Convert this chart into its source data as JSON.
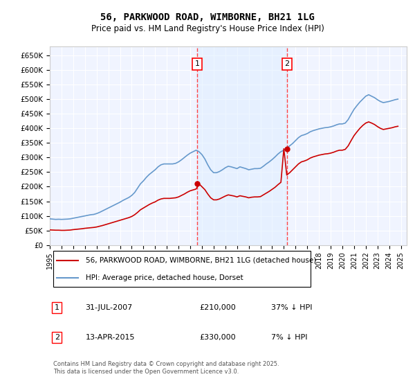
{
  "title": "56, PARKWOOD ROAD, WIMBORNE, BH21 1LG",
  "subtitle": "Price paid vs. HM Land Registry's House Price Index (HPI)",
  "xlabel": "",
  "ylabel": "",
  "ylim": [
    0,
    680000
  ],
  "yticks": [
    0,
    50000,
    100000,
    150000,
    200000,
    250000,
    300000,
    350000,
    400000,
    450000,
    500000,
    550000,
    600000,
    650000
  ],
  "ytick_labels": [
    "£0",
    "£50K",
    "£100K",
    "£150K",
    "£200K",
    "£250K",
    "£300K",
    "£350K",
    "£400K",
    "£450K",
    "£500K",
    "£550K",
    "£600K",
    "£650K"
  ],
  "xlim_start": 1995.0,
  "xlim_end": 2025.5,
  "background_color": "#ffffff",
  "plot_bg_color": "#f0f4ff",
  "grid_color": "#ffffff",
  "line1_color": "#cc0000",
  "line2_color": "#6699cc",
  "sale1_x": 2007.58,
  "sale1_y": 210000,
  "sale2_x": 2015.28,
  "sale2_y": 330000,
  "annotation1_label": "1",
  "annotation2_label": "2",
  "vline_color": "#ff4444",
  "vline_style": "--",
  "legend_line1": "56, PARKWOOD ROAD, WIMBORNE, BH21 1LG (detached house)",
  "legend_line2": "HPI: Average price, detached house, Dorset",
  "table_row1": [
    "1",
    "31-JUL-2007",
    "£210,000",
    "37% ↓ HPI"
  ],
  "table_row2": [
    "2",
    "13-APR-2015",
    "£330,000",
    "7% ↓ HPI"
  ],
  "footnote": "Contains HM Land Registry data © Crown copyright and database right 2025.\nThis data is licensed under the Open Government Licence v3.0.",
  "hpi_years": [
    1995.0,
    1995.25,
    1995.5,
    1995.75,
    1996.0,
    1996.25,
    1996.5,
    1996.75,
    1997.0,
    1997.25,
    1997.5,
    1997.75,
    1998.0,
    1998.25,
    1998.5,
    1998.75,
    1999.0,
    1999.25,
    1999.5,
    1999.75,
    2000.0,
    2000.25,
    2000.5,
    2000.75,
    2001.0,
    2001.25,
    2001.5,
    2001.75,
    2002.0,
    2002.25,
    2002.5,
    2002.75,
    2003.0,
    2003.25,
    2003.5,
    2003.75,
    2004.0,
    2004.25,
    2004.5,
    2004.75,
    2005.0,
    2005.25,
    2005.5,
    2005.75,
    2006.0,
    2006.25,
    2006.5,
    2006.75,
    2007.0,
    2007.25,
    2007.5,
    2007.75,
    2008.0,
    2008.25,
    2008.5,
    2008.75,
    2009.0,
    2009.25,
    2009.5,
    2009.75,
    2010.0,
    2010.25,
    2010.5,
    2010.75,
    2011.0,
    2011.25,
    2011.5,
    2011.75,
    2012.0,
    2012.25,
    2012.5,
    2012.75,
    2013.0,
    2013.25,
    2013.5,
    2013.75,
    2014.0,
    2014.25,
    2014.5,
    2014.75,
    2015.0,
    2015.25,
    2015.5,
    2015.75,
    2016.0,
    2016.25,
    2016.5,
    2016.75,
    2017.0,
    2017.25,
    2017.5,
    2017.75,
    2018.0,
    2018.25,
    2018.5,
    2018.75,
    2019.0,
    2019.25,
    2019.5,
    2019.75,
    2020.0,
    2020.25,
    2020.5,
    2020.75,
    2021.0,
    2021.25,
    2021.5,
    2021.75,
    2022.0,
    2022.25,
    2022.5,
    2022.75,
    2023.0,
    2023.25,
    2023.5,
    2023.75,
    2024.0,
    2024.25,
    2024.5,
    2024.75
  ],
  "hpi_values": [
    90000,
    89000,
    88000,
    88500,
    88000,
    88500,
    89000,
    90000,
    92000,
    94000,
    96000,
    98000,
    100000,
    102000,
    104000,
    105000,
    108000,
    112000,
    117000,
    122000,
    127000,
    132000,
    137000,
    142000,
    147000,
    153000,
    158000,
    163000,
    170000,
    180000,
    195000,
    210000,
    220000,
    232000,
    242000,
    250000,
    258000,
    268000,
    275000,
    278000,
    278000,
    278000,
    278000,
    280000,
    285000,
    292000,
    300000,
    308000,
    315000,
    320000,
    325000,
    320000,
    310000,
    295000,
    275000,
    258000,
    248000,
    248000,
    252000,
    258000,
    265000,
    270000,
    268000,
    265000,
    262000,
    268000,
    265000,
    262000,
    258000,
    260000,
    262000,
    262000,
    263000,
    270000,
    278000,
    285000,
    293000,
    302000,
    312000,
    320000,
    325000,
    332000,
    340000,
    348000,
    358000,
    368000,
    375000,
    378000,
    382000,
    388000,
    392000,
    395000,
    398000,
    400000,
    402000,
    403000,
    405000,
    408000,
    412000,
    415000,
    415000,
    418000,
    430000,
    448000,
    465000,
    478000,
    490000,
    500000,
    510000,
    515000,
    510000,
    505000,
    498000,
    492000,
    488000,
    490000,
    492000,
    495000,
    498000,
    500000
  ],
  "property_years": [
    1995.0,
    1995.25,
    1995.5,
    1995.75,
    1996.0,
    1996.25,
    1996.5,
    1996.75,
    1997.0,
    1997.25,
    1997.5,
    1997.75,
    1998.0,
    1998.25,
    1998.5,
    1998.75,
    1999.0,
    1999.25,
    1999.5,
    1999.75,
    2000.0,
    2000.25,
    2000.5,
    2000.75,
    2001.0,
    2001.25,
    2001.5,
    2001.75,
    2002.0,
    2002.25,
    2002.5,
    2002.75,
    2003.0,
    2003.25,
    2003.5,
    2003.75,
    2004.0,
    2004.25,
    2004.5,
    2004.75,
    2005.0,
    2005.25,
    2005.5,
    2005.75,
    2006.0,
    2006.25,
    2006.5,
    2006.75,
    2007.0,
    2007.25,
    2007.5,
    2007.75,
    2008.0,
    2008.25,
    2008.5,
    2008.75,
    2009.0,
    2009.25,
    2009.5,
    2009.75,
    2010.0,
    2010.25,
    2010.5,
    2010.75,
    2011.0,
    2011.25,
    2011.5,
    2011.75,
    2012.0,
    2012.25,
    2012.5,
    2012.75,
    2013.0,
    2013.25,
    2013.5,
    2013.75,
    2014.0,
    2014.25,
    2014.5,
    2014.75,
    2015.0,
    2015.25,
    2015.5,
    2015.75,
    2016.0,
    2016.25,
    2016.5,
    2016.75,
    2017.0,
    2017.25,
    2017.5,
    2017.75,
    2018.0,
    2018.25,
    2018.5,
    2018.75,
    2019.0,
    2019.25,
    2019.5,
    2019.75,
    2020.0,
    2020.25,
    2020.5,
    2020.75,
    2021.0,
    2021.25,
    2021.5,
    2021.75,
    2022.0,
    2022.25,
    2022.5,
    2022.75,
    2023.0,
    2023.25,
    2023.5,
    2023.75,
    2024.0,
    2024.25,
    2024.5,
    2024.75
  ],
  "property_values": [
    52000,
    51500,
    51000,
    51000,
    50500,
    50500,
    51000,
    51500,
    53000,
    54000,
    55000,
    56000,
    57500,
    58500,
    59500,
    60500,
    62000,
    64500,
    67000,
    70000,
    73000,
    76000,
    79000,
    82000,
    85000,
    88000,
    91000,
    94000,
    98000,
    104000,
    112000,
    121000,
    127000,
    133000,
    139000,
    144000,
    148000,
    154000,
    158000,
    160000,
    160000,
    160000,
    161000,
    162000,
    165000,
    170000,
    175000,
    181000,
    186000,
    189000,
    192000,
    210000,
    200000,
    190000,
    175000,
    162000,
    155000,
    155000,
    158000,
    163000,
    168000,
    172000,
    170000,
    168000,
    165000,
    169000,
    167000,
    165000,
    162000,
    164000,
    165000,
    165000,
    166000,
    172000,
    178000,
    184000,
    191000,
    198000,
    207000,
    215000,
    330000,
    240000,
    248000,
    258000,
    268000,
    278000,
    285000,
    288000,
    292000,
    298000,
    302000,
    305000,
    308000,
    310000,
    312000,
    313000,
    315000,
    318000,
    322000,
    325000,
    325000,
    328000,
    340000,
    358000,
    375000,
    388000,
    400000,
    410000,
    418000,
    422000,
    418000,
    413000,
    406000,
    400000,
    396000,
    398000,
    400000,
    402000,
    405000,
    407000
  ]
}
